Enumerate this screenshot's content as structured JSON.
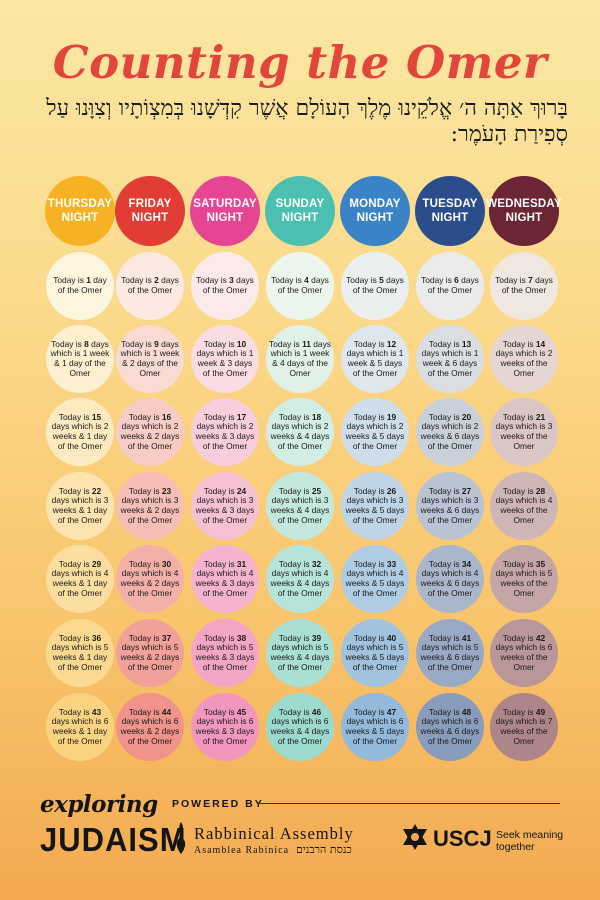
{
  "title": "Counting the Omer",
  "blessing": "בָּרוּךְ אַתָּה ה׳ אֱלֹקֵינוּ מֶלֶךְ הָעוֹלָם אֲשֶׁר קִדְּשָׁנוּ בְּמִצְוֹתָיו וְצִוָּנוּ עַל סְפִירַת הָעֹמֶר:",
  "columns": [
    {
      "label": "THURSDAY\nNIGHT",
      "color": "#f6b223"
    },
    {
      "label": "FRIDAY\nNIGHT",
      "color": "#e23d35"
    },
    {
      "label": "SATURDAY\nNIGHT",
      "color": "#e54592"
    },
    {
      "label": "SUNDAY\nNIGHT",
      "color": "#4bbfb0"
    },
    {
      "label": "MONDAY\nNIGHT",
      "color": "#3a83c6"
    },
    {
      "label": "TUESDAY\nNIGHT",
      "color": "#2b4d8c"
    },
    {
      "label": "WEDNESDAY\nNIGHT",
      "color": "#6c2534"
    }
  ],
  "days": [
    "Today is |1| day of the Omer",
    "Today is |2| days of the Omer",
    "Today is |3| days of the Omer",
    "Today is |4| days of the Omer",
    "Today is |5| days of the Omer",
    "Today is |6| days of the Omer",
    "Today is |7| days of the Omer",
    "Today is |8| days which is 1 week & 1 day of the Omer",
    "Today is |9| days which is 1 week & 2 days of the Omer",
    "Today is |10| days which is 1 week & 3 days of the Omer",
    "Today is |11| days which is 1 week & 4 days of the Omer",
    "Today is |12| days which is 1 week & 5 days of the Omer",
    "Today is |13| days which is 1 week & 6 days of the Omer",
    "Today is |14| days which is 2 weeks of the Omer",
    "Today is |15| days which is 2 weeks & 1 day of the Omer",
    "Today is |16| days which is 2 weeks & 2 days of the Omer",
    "Today is |17| days which is 2 weeks & 3 days of the Omer",
    "Today is |18| days which is 2 weeks & 4 days of the Omer",
    "Today is |19| days which is 2 weeks & 5 days of the Omer",
    "Today is |20| days which is 2 weeks & 6 days of the Omer",
    "Today is |21| days which is 3 weeks of the Omer",
    "Today is |22| days which is 3 weeks & 1 day of the Omer",
    "Today is |23| days which is 3 weeks & 2 days of the Omer",
    "Today is |24| days which is 3 weeks & 3 days of the Omer",
    "Today is |25| days which is 3 weeks & 4 days of the Omer",
    "Today is |26| days which is 3 weeks & 5 days of the Omer",
    "Today is |27| days which is 3 weeks & 6 days of the Omer",
    "Today is |28| days which is 4 weeks of the Omer",
    "Today is |29| days which is 4 weeks & 1 day of the Omer",
    "Today is |30| days which is 4 weeks & 2 days of the Omer",
    "Today is |31| days which is 4 weeks & 3 days of the Omer",
    "Today is |32| days which is 4 weeks & 4 days of the Omer",
    "Today is |33| days which is 4 weeks & 5 days of the Omer",
    "Today is |34| days which is 4 weeks & 6 days of the Omer",
    "Today is |35| days which is 5 weeks of the Omer",
    "Today is |36| days which is 5 weeks & 1 day of the Omer",
    "Today is |37| days which is 5 weeks & 2 days of the Omer",
    "Today is |38| days which is 5 weeks & 3 days of the Omer",
    "Today is |39| days which is 5 weeks & 4 days of the Omer",
    "Today is |40| days which is 5 weeks & 5 days of the Omer",
    "Today is |41| days which is 5 weeks & 6 days of the Omer",
    "Today is |42| days which is 6 weeks of the Omer",
    "Today is |43| days which is 6 weeks & 1 day of the Omer",
    "Today is |44| days which is 6 weeks & 2 days of the Omer",
    "Today is |45| days which is 6 weeks & 3 days of the Omer",
    "Today is |46| days which is 6 weeks & 4 days of the Omer",
    "Today is |47| days which is 6 weeks & 5 days of the Omer",
    "Today is |48| days which is 6 weeks & 6 days of the Omer",
    "Today is |49| days which is 7 weeks of the Omer"
  ],
  "footer": {
    "exploring": "exploring",
    "judaism": "JUDAISM",
    "powered_by": "POWERED BY",
    "ra_name": "Rabbinical Assembly",
    "ra_spanish": "Asamblea Rabínica",
    "ra_hebrew": "כנסת הרבנים",
    "uscj": "USCJ",
    "uscj_tagline": "Seek meaning together",
    "logo_icons": [
      "ra-flame-icon",
      "uscj-star-icon"
    ]
  }
}
